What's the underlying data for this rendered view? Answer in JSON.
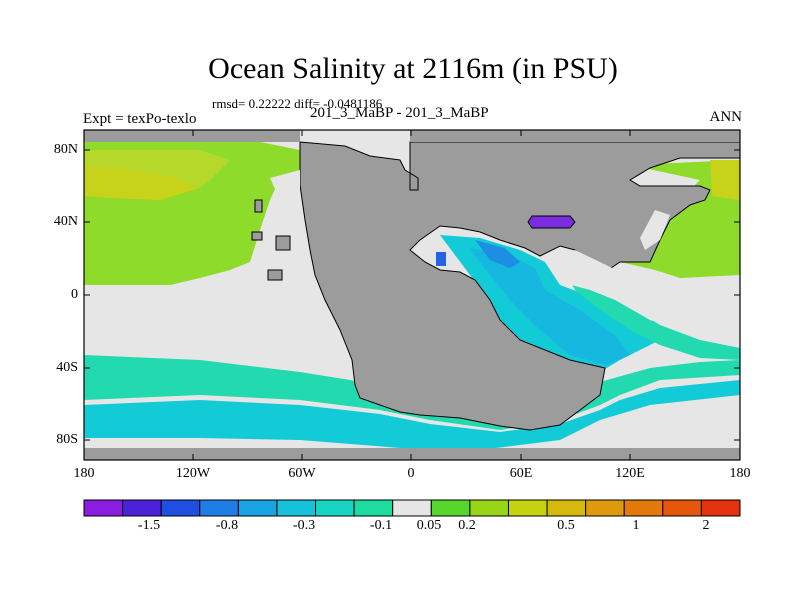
{
  "figure": {
    "title": "Ocean Salinity at 2116m (in PSU)",
    "stats_line": "rmsd= 0.22222 diff= -0.0481186",
    "cases_line": "201_3_MaBP - 201_3_MaBP",
    "expt_label": "Expt = texPo-texlo",
    "season_label": "ANN"
  },
  "axes": {
    "y_ticks": [
      "80N",
      "40N",
      "0",
      "40S",
      "80S"
    ],
    "x_ticks": [
      "180",
      "120W",
      "60W",
      "0",
      "60E",
      "120E",
      "180"
    ]
  },
  "colorbar": {
    "labels": [
      "-1.5",
      "-0.8",
      "-0.3",
      "-0.1",
      "0.05",
      "0.2",
      "0.5",
      "1",
      "2"
    ],
    "colors": [
      "#8a1de0",
      "#4b22d9",
      "#1f4fe0",
      "#1e7ee6",
      "#19a3e2",
      "#16c1dc",
      "#18d5c2",
      "#1edba0",
      "#e6e6e6",
      "#57d62c",
      "#98d516",
      "#c4d20f",
      "#d6b90c",
      "#dc9a0c",
      "#e17a0b",
      "#e4570b",
      "#e5320e"
    ]
  },
  "colors": {
    "land": "#9c9c9c",
    "neutral": "#e6e6e6",
    "green": "#8fdb2b",
    "lime": "#b6d82a",
    "yellow": "#c6d31a",
    "teal": "#22d9b0",
    "cyan": "#13cbd6",
    "sky": "#17b8e0",
    "blue": "#1c8fe4",
    "deep": "#2563e0",
    "purple": "#7a2ee0"
  }
}
